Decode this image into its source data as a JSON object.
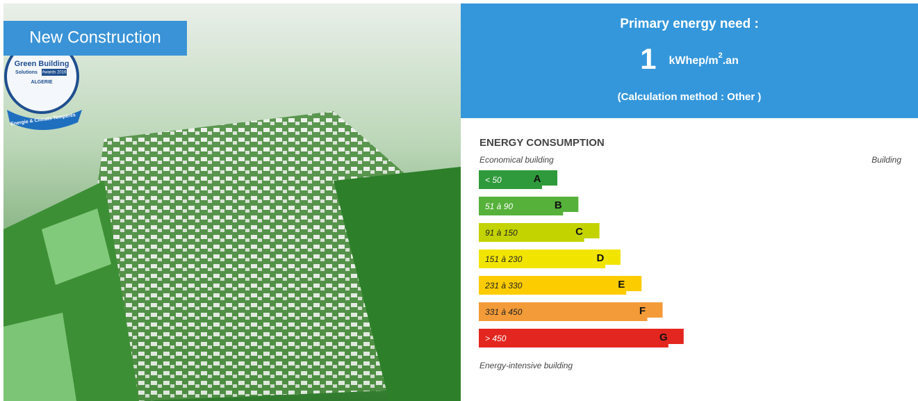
{
  "badge": "New Construction",
  "logo": {
    "line1": "Green Building",
    "line2": "Solutions",
    "line3": "Awards 2016",
    "line4": "ALGERIE",
    "ribbon": "Energie & Climats Tempérés"
  },
  "energy_need": {
    "title": "Primary energy need :",
    "value": "1",
    "unit_prefix": "kWhep/m",
    "unit_sup": "2",
    "unit_suffix": ".an",
    "method": "(Calculation method : Other )"
  },
  "consumption": {
    "heading": "ENERGY CONSUMPTION",
    "top_left": "Economical building",
    "top_right": "Building",
    "bottom": "Energy-intensive building",
    "ratings": [
      {
        "range": "< 50",
        "letter": "A",
        "color": "#2f9a3b"
      },
      {
        "range": "51 à 90",
        "letter": "B",
        "color": "#56b13b"
      },
      {
        "range": "91 à 150",
        "letter": "C",
        "color": "#c3d300"
      },
      {
        "range": "151 à 230",
        "letter": "D",
        "color": "#f1e500"
      },
      {
        "range": "231 à 330",
        "letter": "E",
        "color": "#fccc00"
      },
      {
        "range": "331 à 450",
        "letter": "F",
        "color": "#f39b38"
      },
      {
        "range": "> 450",
        "letter": "G",
        "color": "#e3261f"
      }
    ]
  }
}
